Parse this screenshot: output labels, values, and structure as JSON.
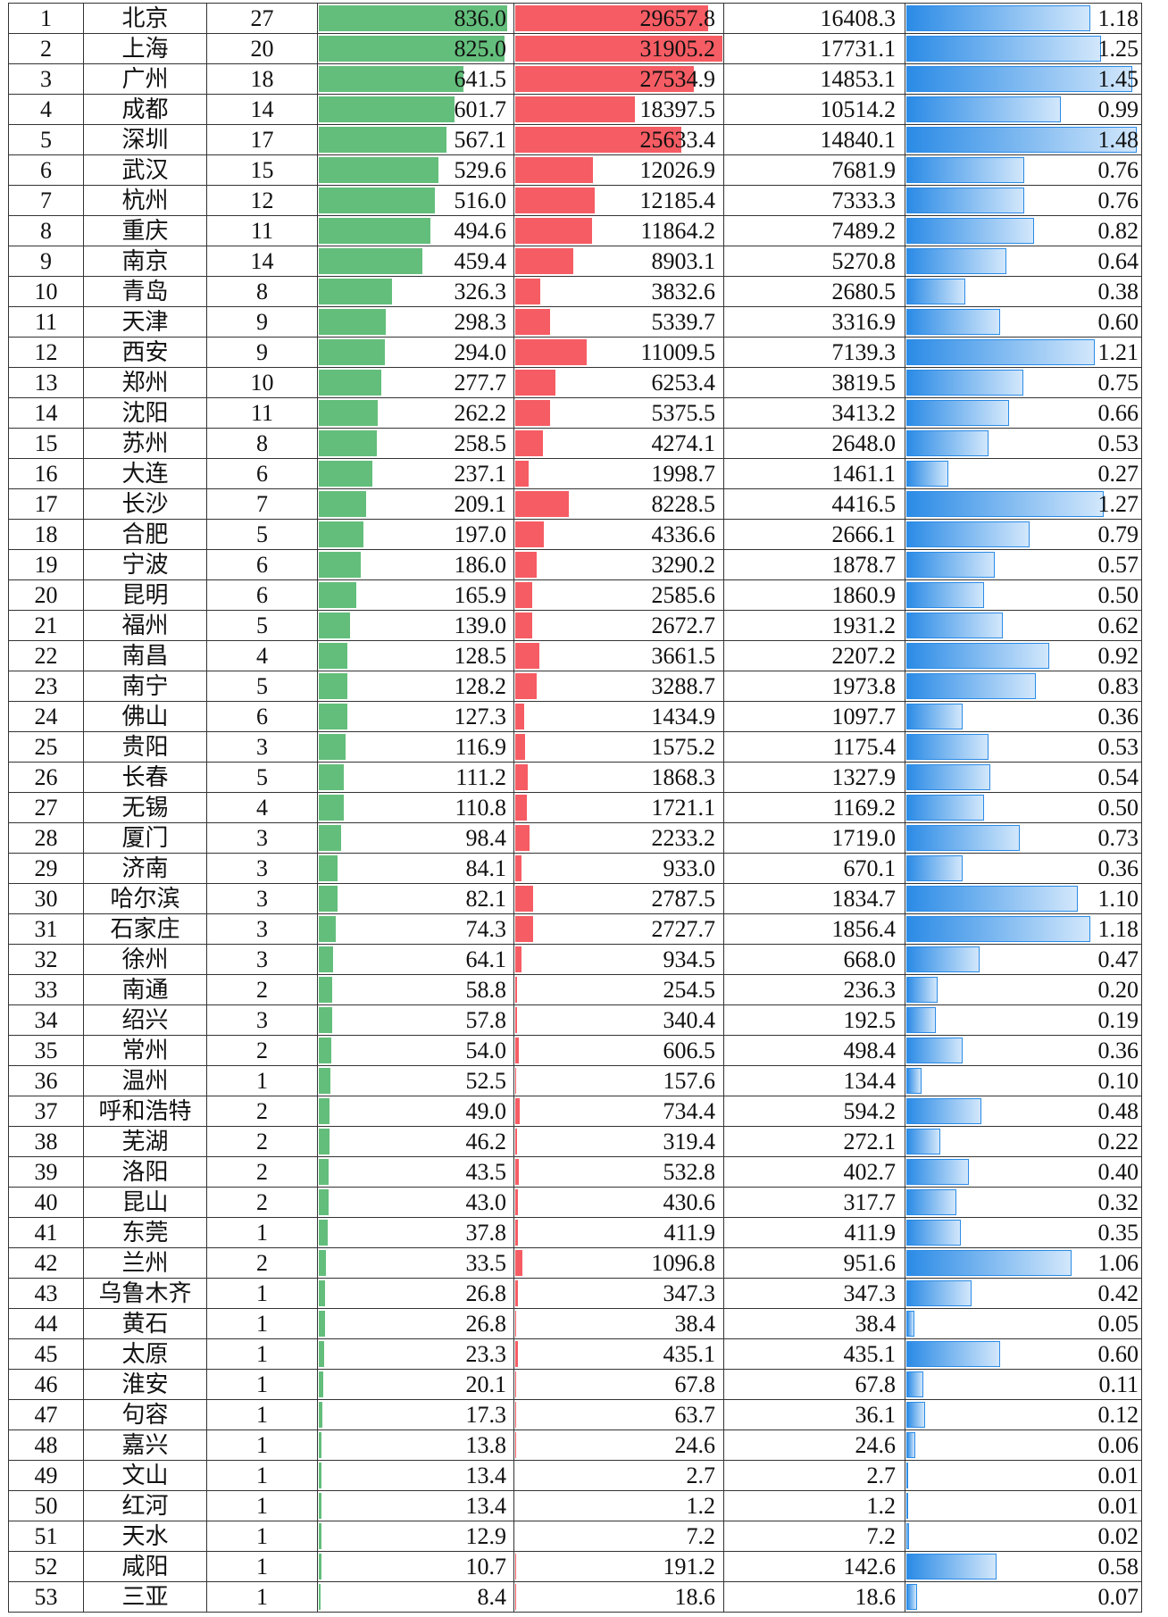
{
  "colors": {
    "green_bar": "#63be7b",
    "red_bar": "#f65c63",
    "blue_bar": "#2b8be6",
    "blue_bar_light": "#d2e7fb",
    "grid": "#333333"
  },
  "chart_data": {
    "type": "table",
    "rows": [
      [
        "1",
        "北京",
        "27",
        "836.0",
        "29657.8",
        "16408.3",
        "1.18"
      ],
      [
        "2",
        "上海",
        "20",
        "825.0",
        "31905.2",
        "17731.1",
        "1.25"
      ],
      [
        "3",
        "广州",
        "18",
        "641.5",
        "27534.9",
        "14853.1",
        "1.45"
      ],
      [
        "4",
        "成都",
        "14",
        "601.7",
        "18397.5",
        "10514.2",
        "0.99"
      ],
      [
        "5",
        "深圳",
        "17",
        "567.1",
        "25633.4",
        "14840.1",
        "1.48"
      ],
      [
        "6",
        "武汉",
        "15",
        "529.6",
        "12026.9",
        "7681.9",
        "0.76"
      ],
      [
        "7",
        "杭州",
        "12",
        "516.0",
        "12185.4",
        "7333.3",
        "0.76"
      ],
      [
        "8",
        "重庆",
        "11",
        "494.6",
        "11864.2",
        "7489.2",
        "0.82"
      ],
      [
        "9",
        "南京",
        "14",
        "459.4",
        "8903.1",
        "5270.8",
        "0.64"
      ],
      [
        "10",
        "青岛",
        "8",
        "326.3",
        "3832.6",
        "2680.5",
        "0.38"
      ],
      [
        "11",
        "天津",
        "9",
        "298.3",
        "5339.7",
        "3316.9",
        "0.60"
      ],
      [
        "12",
        "西安",
        "9",
        "294.0",
        "11009.5",
        "7139.3",
        "1.21"
      ],
      [
        "13",
        "郑州",
        "10",
        "277.7",
        "6253.4",
        "3819.5",
        "0.75"
      ],
      [
        "14",
        "沈阳",
        "11",
        "262.2",
        "5375.5",
        "3413.2",
        "0.66"
      ],
      [
        "15",
        "苏州",
        "8",
        "258.5",
        "4274.1",
        "2648.0",
        "0.53"
      ],
      [
        "16",
        "大连",
        "6",
        "237.1",
        "1998.7",
        "1461.1",
        "0.27"
      ],
      [
        "17",
        "长沙",
        "7",
        "209.1",
        "8228.5",
        "4416.5",
        "1.27"
      ],
      [
        "18",
        "合肥",
        "5",
        "197.0",
        "4336.6",
        "2666.1",
        "0.79"
      ],
      [
        "19",
        "宁波",
        "6",
        "186.0",
        "3290.2",
        "1878.7",
        "0.57"
      ],
      [
        "20",
        "昆明",
        "6",
        "165.9",
        "2585.6",
        "1860.9",
        "0.50"
      ],
      [
        "21",
        "福州",
        "5",
        "139.0",
        "2672.7",
        "1931.2",
        "0.62"
      ],
      [
        "22",
        "南昌",
        "4",
        "128.5",
        "3661.5",
        "2207.2",
        "0.92"
      ],
      [
        "23",
        "南宁",
        "5",
        "128.2",
        "3288.7",
        "1973.8",
        "0.83"
      ],
      [
        "24",
        "佛山",
        "6",
        "127.3",
        "1434.9",
        "1097.7",
        "0.36"
      ],
      [
        "25",
        "贵阳",
        "3",
        "116.9",
        "1575.2",
        "1175.4",
        "0.53"
      ],
      [
        "26",
        "长春",
        "5",
        "111.2",
        "1868.3",
        "1327.9",
        "0.54"
      ],
      [
        "27",
        "无锡",
        "4",
        "110.8",
        "1721.1",
        "1169.2",
        "0.50"
      ],
      [
        "28",
        "厦门",
        "3",
        "98.4",
        "2233.2",
        "1719.0",
        "0.73"
      ],
      [
        "29",
        "济南",
        "3",
        "84.1",
        "933.0",
        "670.1",
        "0.36"
      ],
      [
        "30",
        "哈尔滨",
        "3",
        "82.1",
        "2787.5",
        "1834.7",
        "1.10"
      ],
      [
        "31",
        "石家庄",
        "3",
        "74.3",
        "2727.7",
        "1856.4",
        "1.18"
      ],
      [
        "32",
        "徐州",
        "3",
        "64.1",
        "934.5",
        "668.0",
        "0.47"
      ],
      [
        "33",
        "南通",
        "2",
        "58.8",
        "254.5",
        "236.3",
        "0.20"
      ],
      [
        "34",
        "绍兴",
        "3",
        "57.8",
        "340.4",
        "192.5",
        "0.19"
      ],
      [
        "35",
        "常州",
        "2",
        "54.0",
        "606.5",
        "498.4",
        "0.36"
      ],
      [
        "36",
        "温州",
        "1",
        "52.5",
        "157.6",
        "134.4",
        "0.10"
      ],
      [
        "37",
        "呼和浩特",
        "2",
        "49.0",
        "734.4",
        "594.2",
        "0.48"
      ],
      [
        "38",
        "芜湖",
        "2",
        "46.2",
        "319.4",
        "272.1",
        "0.22"
      ],
      [
        "39",
        "洛阳",
        "2",
        "43.5",
        "532.8",
        "402.7",
        "0.40"
      ],
      [
        "40",
        "昆山",
        "2",
        "43.0",
        "430.6",
        "317.7",
        "0.32"
      ],
      [
        "41",
        "东莞",
        "1",
        "37.8",
        "411.9",
        "411.9",
        "0.35"
      ],
      [
        "42",
        "兰州",
        "2",
        "33.5",
        "1096.8",
        "951.6",
        "1.06"
      ],
      [
        "43",
        "乌鲁木齐",
        "1",
        "26.8",
        "347.3",
        "347.3",
        "0.42"
      ],
      [
        "44",
        "黄石",
        "1",
        "26.8",
        "38.4",
        "38.4",
        "0.05"
      ],
      [
        "45",
        "太原",
        "1",
        "23.3",
        "435.1",
        "435.1",
        "0.60"
      ],
      [
        "46",
        "淮安",
        "1",
        "20.1",
        "67.8",
        "67.8",
        "0.11"
      ],
      [
        "47",
        "句容",
        "1",
        "17.3",
        "63.7",
        "36.1",
        "0.12"
      ],
      [
        "48",
        "嘉兴",
        "1",
        "13.8",
        "24.6",
        "24.6",
        "0.06"
      ],
      [
        "49",
        "文山",
        "1",
        "13.4",
        "2.7",
        "2.7",
        "0.01"
      ],
      [
        "50",
        "红河",
        "1",
        "13.4",
        "1.2",
        "1.2",
        "0.01"
      ],
      [
        "51",
        "天水",
        "1",
        "12.9",
        "7.2",
        "7.2",
        "0.02"
      ],
      [
        "52",
        "咸阳",
        "1",
        "10.7",
        "191.2",
        "142.6",
        "0.58"
      ],
      [
        "53",
        "三亚",
        "1",
        "8.4",
        "18.6",
        "18.6",
        "0.07"
      ]
    ]
  }
}
